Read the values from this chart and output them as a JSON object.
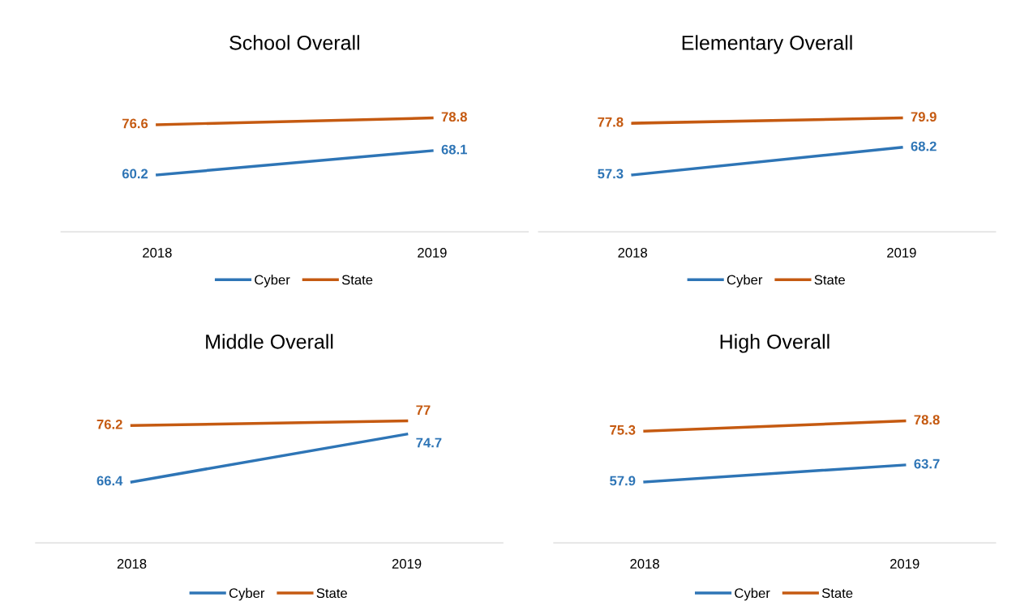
{
  "chart_data": [
    {
      "type": "line",
      "title": "School Overall",
      "categories": [
        "2018",
        "2019"
      ],
      "tick_labels": "x",
      "data_labels": true,
      "legend": "bottom",
      "grid": false,
      "marker": "none",
      "line_style": "solid",
      "series": [
        {
          "name": "Cyber",
          "color": "#2e75b6",
          "values": [
            60.2,
            68.1
          ]
        },
        {
          "name": "State",
          "color": "#c55a11",
          "values": [
            76.6,
            78.8
          ]
        }
      ]
    },
    {
      "type": "line",
      "title": "Elementary Overall",
      "categories": [
        "2018",
        "2019"
      ],
      "tick_labels": "x",
      "data_labels": true,
      "legend": "bottom",
      "grid": false,
      "marker": "none",
      "line_style": "solid",
      "series": [
        {
          "name": "Cyber",
          "color": "#2e75b6",
          "values": [
            57.3,
            68.2
          ]
        },
        {
          "name": "State",
          "color": "#c55a11",
          "values": [
            77.8,
            79.9
          ]
        }
      ]
    },
    {
      "type": "line",
      "title": "Middle Overall",
      "categories": [
        "2018",
        "2019"
      ],
      "tick_labels": "x",
      "data_labels": true,
      "legend": "bottom",
      "grid": false,
      "marker": "none",
      "line_style": "solid",
      "series": [
        {
          "name": "Cyber",
          "color": "#2e75b6",
          "values": [
            66.4,
            74.7
          ]
        },
        {
          "name": "State",
          "color": "#c55a11",
          "values": [
            76.2,
            77
          ]
        }
      ]
    },
    {
      "type": "line",
      "title": "High Overall",
      "categories": [
        "2018",
        "2019"
      ],
      "tick_labels": "x",
      "data_labels": true,
      "legend": "bottom",
      "grid": false,
      "marker": "none",
      "line_style": "solid",
      "series": [
        {
          "name": "Cyber",
          "color": "#2e75b6",
          "values": [
            57.9,
            63.7
          ]
        },
        {
          "name": "State",
          "color": "#c55a11",
          "values": [
            75.3,
            78.8
          ]
        }
      ]
    }
  ]
}
